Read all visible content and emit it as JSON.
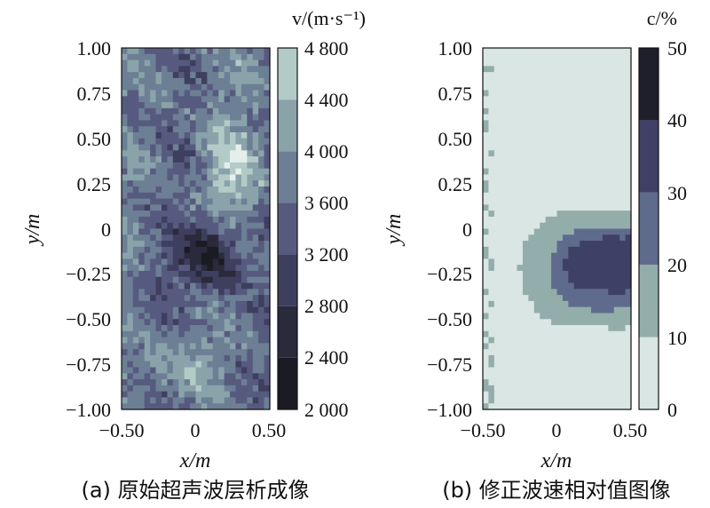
{
  "chart_data": [
    {
      "type": "heatmap",
      "title": "",
      "caption": "(a) 原始超声波层析成像",
      "xlabel": "x/m",
      "ylabel": "y/m",
      "xlim": [
        -0.5,
        0.5
      ],
      "ylim": [
        -1.0,
        1.0
      ],
      "x_ticks": [
        "−0.50",
        "0",
        "0.50"
      ],
      "y_ticks": [
        "1.00",
        "0.75",
        "0.50",
        "0.25",
        "0",
        "−0.25",
        "−0.50",
        "−0.75",
        "−1.00"
      ],
      "colorbar": {
        "title": "v/(m·s⁻¹)",
        "min": 2000,
        "max": 4800,
        "levels": [
          2000,
          2400,
          2800,
          3200,
          3600,
          4000,
          4400,
          4800
        ],
        "tick_labels": [
          "4 800",
          "4 400",
          "4 000",
          "3 600",
          "3 200",
          "2 800",
          "2 400",
          "2 000"
        ],
        "colors": [
          "#1b1b24",
          "#2a2a3c",
          "#3e3f5e",
          "#575a7f",
          "#6c7f95",
          "#8aa3aa",
          "#b3cbc7",
          "#e4efec"
        ]
      },
      "field_features": [
        {
          "kind": "low",
          "x": 0.1,
          "y": -0.15,
          "value": 2300,
          "sx": 0.22,
          "sy": 0.22
        },
        {
          "kind": "high",
          "x": 0.25,
          "y": 0.3,
          "value": 4500,
          "sx": 0.2,
          "sy": 0.28
        },
        {
          "kind": "high",
          "x": -0.15,
          "y": -0.75,
          "value": 4200,
          "sx": 0.25,
          "sy": 0.15
        }
      ]
    },
    {
      "type": "heatmap",
      "title": "",
      "caption": "(b) 修正波速相对值图像",
      "xlabel": "x/m",
      "ylabel": "y/m",
      "xlim": [
        -0.5,
        0.5
      ],
      "ylim": [
        -1.0,
        1.0
      ],
      "x_ticks": [
        "−0.50",
        "0",
        "0.50"
      ],
      "y_ticks": [
        "1.00",
        "0.75",
        "0.50",
        "0.25",
        "0",
        "−0.25",
        "−0.50",
        "−0.75",
        "−1.00"
      ],
      "colorbar": {
        "title": "c/%",
        "min": 0,
        "max": 50,
        "levels": [
          0,
          10,
          20,
          30,
          40,
          50
        ],
        "tick_labels": [
          "50",
          "40",
          "30",
          "20",
          "10",
          "0"
        ],
        "colors": [
          "#d9e6e3",
          "#93adab",
          "#5f6b8c",
          "#3f4066",
          "#1f1f2b"
        ]
      },
      "field_features": [
        {
          "kind": "zone",
          "x_range": [
            -0.25,
            0.5
          ],
          "y_range": [
            -0.55,
            0.1
          ],
          "value": 10
        },
        {
          "kind": "zone",
          "x_range": [
            -0.05,
            0.5
          ],
          "y_range": [
            -0.45,
            0.0
          ],
          "value": 20
        },
        {
          "kind": "zone",
          "x_range": [
            0.05,
            0.5
          ],
          "y_range": [
            -0.35,
            -0.05
          ],
          "value": 30
        }
      ]
    }
  ]
}
